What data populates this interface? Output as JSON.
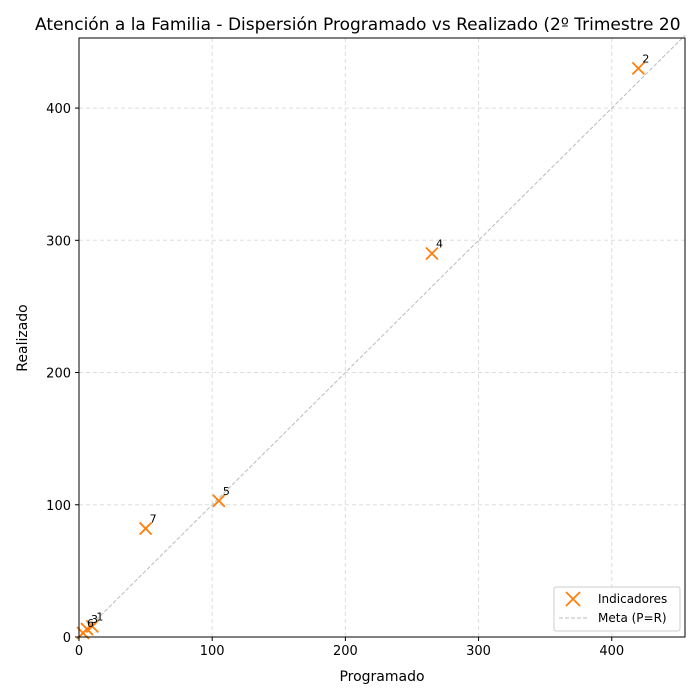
{
  "chart_data": {
    "type": "scatter",
    "title": "Atención a la Familia - Dispersión Programado vs Realizado (2º Trimestre 20",
    "xlabel": "Programado",
    "ylabel": "Realizado",
    "xlim": [
      0,
      455
    ],
    "ylim": [
      0,
      453
    ],
    "xticks": [
      0,
      100,
      200,
      300,
      400
    ],
    "yticks": [
      0,
      100,
      200,
      300,
      400
    ],
    "grid": true,
    "legend_position": "bottom-right",
    "series": [
      {
        "name": "Indicadores",
        "color": "#ff7f0e",
        "marker": "x",
        "points": [
          {
            "label": "1",
            "x": 10,
            "y": 8
          },
          {
            "label": "2",
            "x": 420,
            "y": 430
          },
          {
            "label": "3",
            "x": 6,
            "y": 6
          },
          {
            "label": "4",
            "x": 265,
            "y": 290
          },
          {
            "label": "5",
            "x": 105,
            "y": 103
          },
          {
            "label": "6",
            "x": 3,
            "y": 3
          },
          {
            "label": "7",
            "x": 50,
            "y": 82
          }
        ]
      }
    ],
    "reference_line": {
      "name": "Meta (P=R)",
      "color": "#bbbbbb",
      "style": "dashed",
      "from": [
        0,
        0
      ],
      "to": [
        455,
        455
      ]
    }
  }
}
